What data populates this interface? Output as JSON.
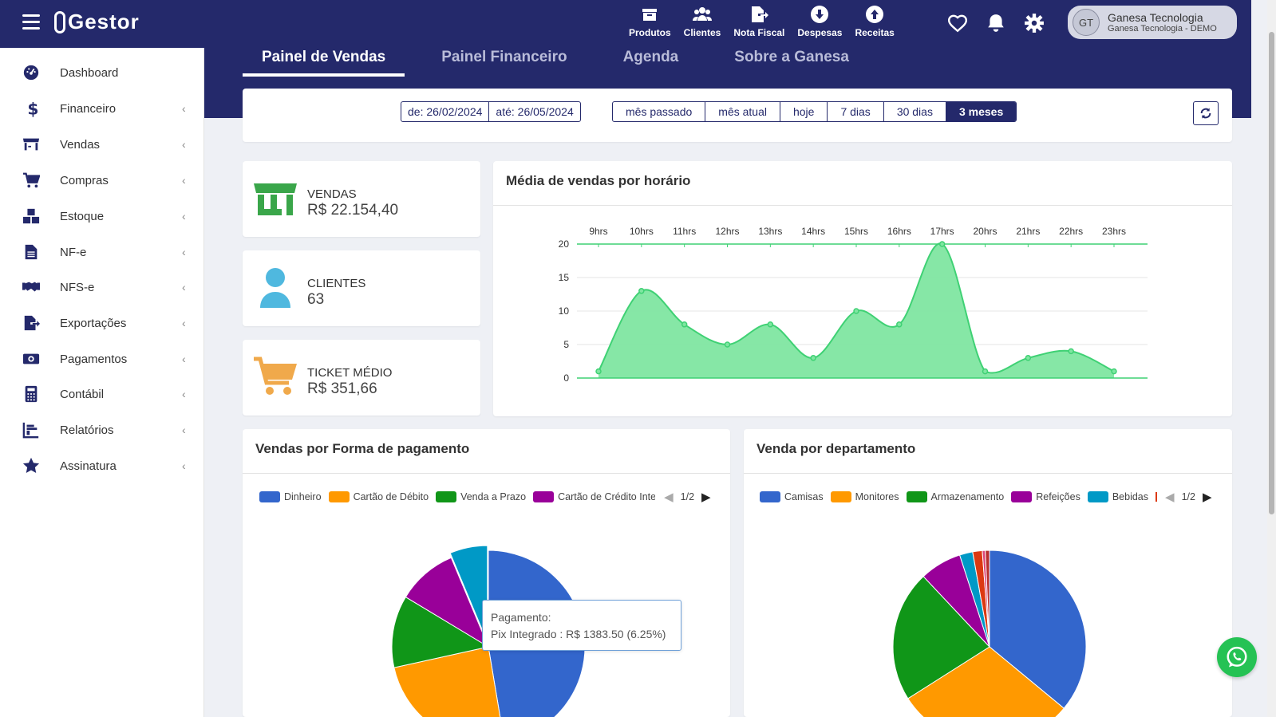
{
  "app": {
    "name": "Gestor"
  },
  "topnav": [
    {
      "label": "Produtos",
      "icon": "box-icon"
    },
    {
      "label": "Clientes",
      "icon": "users-icon"
    },
    {
      "label": "Nota Fiscal",
      "icon": "file-export-icon"
    },
    {
      "label": "Despesas",
      "icon": "arrow-circle-down-icon"
    },
    {
      "label": "Receitas",
      "icon": "arrow-circle-up-icon"
    }
  ],
  "user": {
    "initials": "GT",
    "name": "Ganesa Tecnologia",
    "company": "Ganesa Tecnologia - DEMO"
  },
  "sidebar": {
    "items": [
      {
        "label": "Dashboard",
        "icon": "dashboard-icon"
      },
      {
        "label": "Financeiro",
        "icon": "dollar-icon"
      },
      {
        "label": "Vendas",
        "icon": "store-icon"
      },
      {
        "label": "Compras",
        "icon": "cart-icon"
      },
      {
        "label": "Estoque",
        "icon": "boxes-icon"
      },
      {
        "label": "NF-e",
        "icon": "file-icon"
      },
      {
        "label": "NFS-e",
        "icon": "handshake-icon"
      },
      {
        "label": "Exportações",
        "icon": "file-export-icon"
      },
      {
        "label": "Pagamentos",
        "icon": "money-icon"
      },
      {
        "label": "Contábil",
        "icon": "calculator-icon"
      },
      {
        "label": "Relatórios",
        "icon": "chart-icon"
      },
      {
        "label": "Assinatura",
        "icon": "star-icon"
      }
    ]
  },
  "tabs": [
    {
      "label": "Painel de Vendas",
      "active": true
    },
    {
      "label": "Painel Financeiro"
    },
    {
      "label": "Agenda"
    },
    {
      "label": "Sobre a Ganesa"
    }
  ],
  "filter": {
    "from": "de: 26/02/2024",
    "to": "até: 26/05/2024",
    "ranges": [
      "mês passado",
      "mês atual",
      "hoje",
      "7 dias",
      "30 dias",
      "3 meses"
    ],
    "selected": "3 meses"
  },
  "stats": [
    {
      "label": "VENDAS",
      "value": "R$  22.154,40",
      "color": "#3aa64a"
    },
    {
      "label": "CLIENTES",
      "value": "63",
      "color": "#4fb8df"
    },
    {
      "label": "TICKET MÉDIO",
      "value": "R$  351,66",
      "color": "#f0a94b"
    }
  ],
  "area_chart": {
    "title": "Média de vendas por horário",
    "chart_data": {
      "type": "area",
      "x": [
        "9hrs",
        "10hrs",
        "11hrs",
        "12hrs",
        "13hrs",
        "14hrs",
        "15hrs",
        "16hrs",
        "17hrs",
        "20hrs",
        "21hrs",
        "22hrs",
        "23hrs"
      ],
      "values": [
        1,
        13,
        8,
        5,
        8,
        3,
        10,
        8,
        20,
        1,
        3,
        4,
        1
      ],
      "yticks": [
        0,
        5,
        10,
        15,
        20
      ],
      "ylim": [
        0,
        20
      ],
      "color": "#3fd174"
    }
  },
  "payment_chart": {
    "title": "Vendas por Forma de pagamento",
    "legend": [
      {
        "label": "Dinheiro",
        "color": "#3366cc"
      },
      {
        "label": "Cartão de Débito",
        "color": "#ff9900"
      },
      {
        "label": "Venda a Prazo",
        "color": "#109618"
      },
      {
        "label": "Cartão de Crédito Integrado",
        "color": "#990099"
      }
    ],
    "page": "1/2",
    "tooltip_title": "Pagamento:",
    "tooltip_text": "Pix Integrado : R$ 1383.50 (6.25%)",
    "chart_data": {
      "type": "pie",
      "slices": [
        {
          "label": "Dinheiro",
          "value": 47,
          "color": "#3366cc"
        },
        {
          "label": "Cartão de Débito",
          "value": 24,
          "color": "#ff9900"
        },
        {
          "label": "Venda a Prazo",
          "value": 12,
          "color": "#109618"
        },
        {
          "label": "Cartão de Crédito Integrado",
          "value": 10,
          "color": "#990099"
        },
        {
          "label": "Pix Integrado",
          "value": 6.25,
          "color": "#0099c6"
        }
      ]
    }
  },
  "department_chart": {
    "title": "Venda por departamento",
    "legend": [
      {
        "label": "Camisas",
        "color": "#3366cc"
      },
      {
        "label": "Monitores",
        "color": "#ff9900"
      },
      {
        "label": "Armazenamento",
        "color": "#109618"
      },
      {
        "label": "Refeições",
        "color": "#990099"
      },
      {
        "label": "Bebidas",
        "color": "#0099c6"
      }
    ],
    "page": "1/2",
    "chart_data": {
      "type": "pie",
      "slices": [
        {
          "label": "Camisas",
          "value": 36,
          "color": "#3366cc"
        },
        {
          "label": "Monitores",
          "value": 30,
          "color": "#ff9900"
        },
        {
          "label": "Armazenamento",
          "value": 22,
          "color": "#109618"
        },
        {
          "label": "Refeições",
          "value": 7,
          "color": "#990099"
        },
        {
          "label": "Bebidas",
          "value": 2.2,
          "color": "#0099c6"
        },
        {
          "label": "",
          "value": 1.6,
          "color": "#dc3912"
        },
        {
          "label": "",
          "value": 0.5,
          "color": "#dd4477"
        },
        {
          "label": "",
          "value": 0.7,
          "color": "#b82e2e"
        }
      ]
    }
  }
}
